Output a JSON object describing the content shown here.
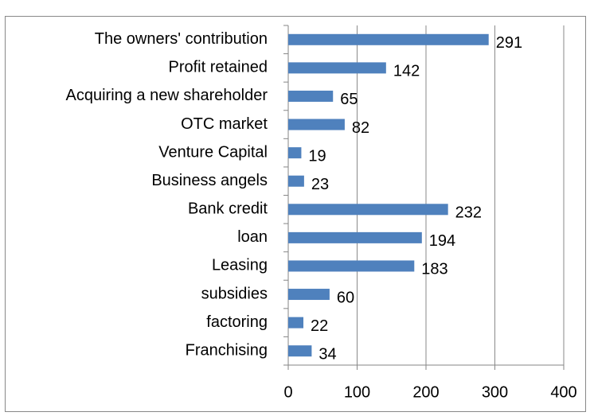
{
  "chart_data": {
    "type": "bar",
    "orientation": "horizontal",
    "categories": [
      "The owners' contribution",
      "Profit retained",
      "Acquiring a new shareholder",
      "OTC market",
      "Venture Capital",
      "Business angels",
      "Bank credit",
      "loan",
      "Leasing",
      "subsidies",
      "factoring",
      "Franchising"
    ],
    "values": [
      291,
      142,
      65,
      82,
      19,
      23,
      232,
      194,
      183,
      60,
      22,
      34
    ],
    "color": "#4f81bd",
    "xlim": [
      0,
      400
    ],
    "xticks": [
      0,
      100,
      200,
      300,
      400
    ],
    "grid": true
  }
}
